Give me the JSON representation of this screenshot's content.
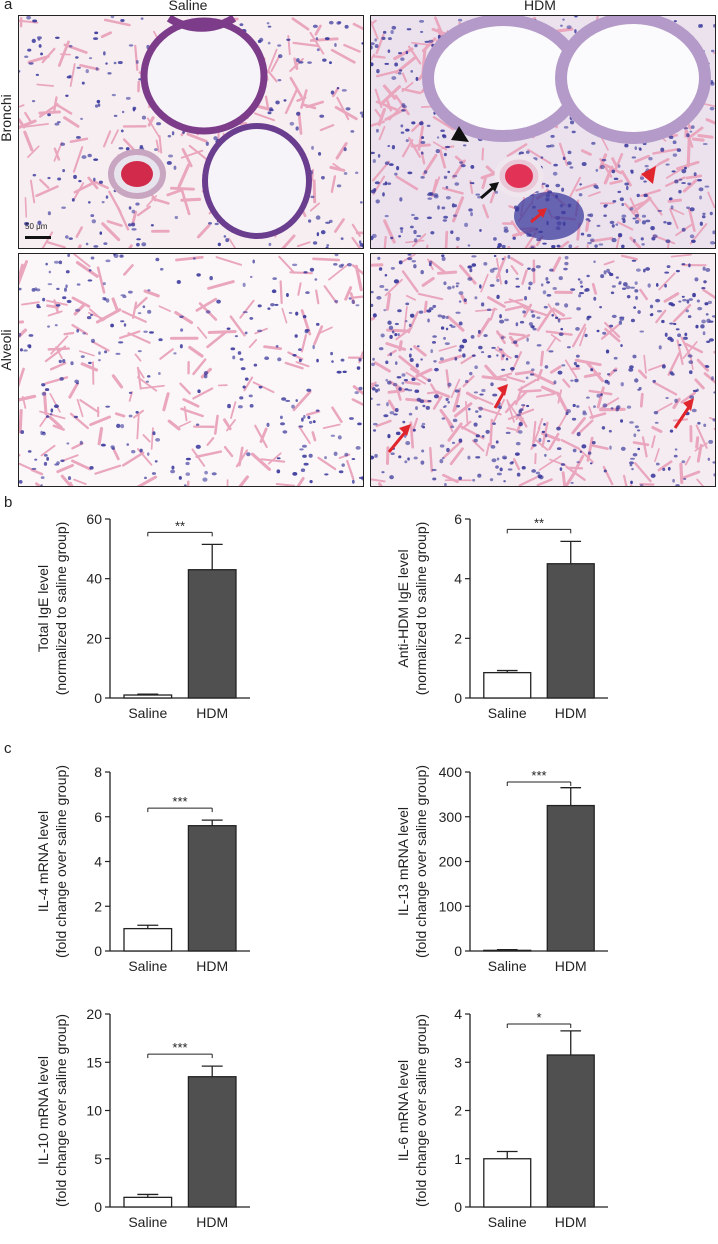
{
  "figure": {
    "panel_a": {
      "letter": "a",
      "columns": [
        "Saline",
        "HDM"
      ],
      "rows": [
        "Bronchi",
        "Alveoli"
      ],
      "scale_bar": "50 μm"
    },
    "panel_b": {
      "letter": "b"
    },
    "panel_c": {
      "letter": "c"
    }
  },
  "colors": {
    "saline_bar": "#ffffff",
    "hdm_bar": "#505050",
    "tissue_pink": "#e9a6bd",
    "nuclei": "#3b3a9c",
    "arrow_red": "#e0262c",
    "arrow_black": "#111111"
  },
  "chart_data": [
    {
      "id": "total-ige",
      "type": "bar",
      "categories": [
        "Saline",
        "HDM"
      ],
      "values": [
        1,
        43
      ],
      "errors": [
        0.3,
        8.5
      ],
      "ylabel": "Total IgE level\n(normalized to saline group)",
      "ylim": [
        0,
        60
      ],
      "yticks": [
        0,
        20,
        40,
        60
      ],
      "significance": "**"
    },
    {
      "id": "anti-hdm-ige",
      "type": "bar",
      "categories": [
        "Saline",
        "HDM"
      ],
      "values": [
        0.85,
        4.5
      ],
      "errors": [
        0.07,
        0.75
      ],
      "ylabel": "Anti-HDM IgE level\n(normalized to saline group)",
      "ylim": [
        0,
        6
      ],
      "yticks": [
        0,
        2,
        4,
        6
      ],
      "significance": "**"
    },
    {
      "id": "il4",
      "type": "bar",
      "categories": [
        "Saline",
        "HDM"
      ],
      "values": [
        1.0,
        5.6
      ],
      "errors": [
        0.15,
        0.25
      ],
      "ylabel": "IL-4 mRNA level\n(fold change over saline group)",
      "ylim": [
        0,
        8
      ],
      "yticks": [
        0,
        2,
        4,
        6,
        8
      ],
      "significance": "***"
    },
    {
      "id": "il13",
      "type": "bar",
      "categories": [
        "Saline",
        "HDM"
      ],
      "values": [
        1.5,
        325
      ],
      "errors": [
        1.5,
        40
      ],
      "ylabel": "IL-13 mRNA level\n(fold change over saline group)",
      "ylim": [
        0,
        400
      ],
      "yticks": [
        0,
        100,
        200,
        300,
        400
      ],
      "significance": "***"
    },
    {
      "id": "il10",
      "type": "bar",
      "categories": [
        "Saline",
        "HDM"
      ],
      "values": [
        1.0,
        13.5
      ],
      "errors": [
        0.3,
        1.1
      ],
      "ylabel": "IL-10 mRNA level\n(fold change over saline group)",
      "ylim": [
        0,
        20
      ],
      "yticks": [
        0,
        5,
        10,
        15,
        20
      ],
      "significance": "***"
    },
    {
      "id": "il6",
      "type": "bar",
      "categories": [
        "Saline",
        "HDM"
      ],
      "values": [
        1.0,
        3.15
      ],
      "errors": [
        0.15,
        0.5
      ],
      "ylabel": "IL-6 mRNA level\n(fold change over saline group)",
      "ylim": [
        0,
        4
      ],
      "yticks": [
        0,
        1,
        2,
        3,
        4
      ],
      "significance": "*"
    }
  ]
}
